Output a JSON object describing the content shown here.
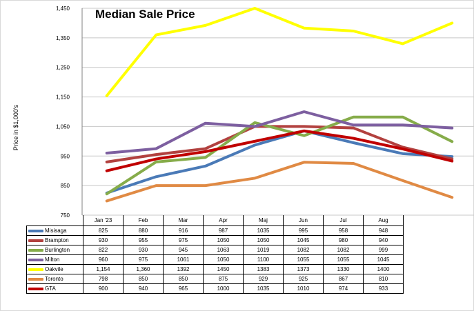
{
  "chart_data": {
    "type": "line",
    "title": "Median Sale Price",
    "ylabel": "Price in $1,000's",
    "ylim": [
      750,
      1450
    ],
    "yticks": [
      "750",
      "850",
      "950",
      "1,050",
      "1,150",
      "1,250",
      "1,350",
      "1,450"
    ],
    "ytick_values": [
      750,
      850,
      950,
      1050,
      1150,
      1250,
      1350,
      1450
    ],
    "categories": [
      "Jan '23",
      "Feb",
      "Mar",
      "Apr",
      "Maj",
      "Jun",
      "Jul",
      "Aug"
    ],
    "grid": true,
    "legend": "data table below chart",
    "series": [
      {
        "name": "Misisaga",
        "color": "#4a7ab7",
        "values": [
          825,
          880,
          916,
          987,
          1035,
          995,
          958,
          948
        ],
        "labels": [
          "825",
          "880",
          "916",
          "987",
          "1035",
          "995",
          "958",
          "948"
        ]
      },
      {
        "name": "Brampton",
        "color": "#b2413f",
        "values": [
          930,
          955,
          975,
          1050,
          1050,
          1045,
          980,
          940
        ],
        "labels": [
          "930",
          "955",
          "975",
          "1050",
          "1050",
          "1045",
          "980",
          "940"
        ]
      },
      {
        "name": "Burlington",
        "color": "#86ac4a",
        "values": [
          822,
          930,
          945,
          1063,
          1019,
          1082,
          1082,
          999
        ],
        "labels": [
          "822",
          "930",
          "945",
          "1063",
          "1019",
          "1082",
          "1082",
          "999"
        ]
      },
      {
        "name": "Milton",
        "color": "#7d5fa0",
        "values": [
          960,
          975,
          1061,
          1050,
          1100,
          1055,
          1055,
          1045
        ],
        "labels": [
          "960",
          "975",
          "1061",
          "1050",
          "1100",
          "1055",
          "1055",
          "1045"
        ]
      },
      {
        "name": "Oakvile",
        "color": "#ffff00",
        "values": [
          1154,
          1360,
          1392,
          1450,
          1383,
          1373,
          1330,
          1400
        ],
        "labels": [
          "1,154",
          "1,360",
          "1392",
          "1450",
          "1383",
          "1373",
          "1330",
          "1400"
        ]
      },
      {
        "name": "Toronto",
        "color": "#e08a44",
        "values": [
          798,
          850,
          850,
          875,
          929,
          925,
          867,
          810
        ],
        "labels": [
          "798",
          "850",
          "850",
          "875",
          "929",
          "925",
          "867",
          "810"
        ]
      },
      {
        "name": "GTA",
        "color": "#c00000",
        "values": [
          900,
          940,
          965,
          1000,
          1035,
          1010,
          974,
          933
        ],
        "labels": [
          "900",
          "940",
          "965",
          "1000",
          "1035",
          "1010",
          "974",
          "933"
        ]
      }
    ]
  }
}
